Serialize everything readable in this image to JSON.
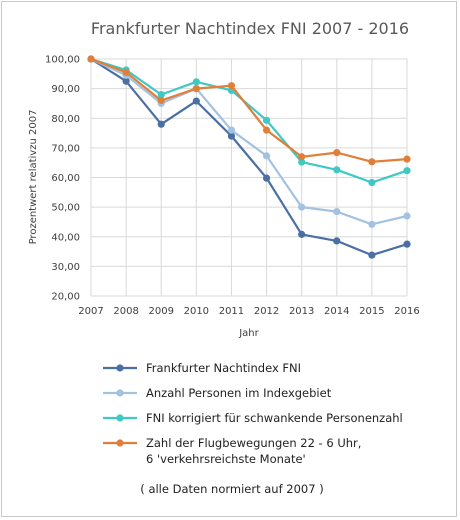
{
  "chart_data": {
    "type": "line",
    "title": "Frankfurter Nachtindex FNI 2007 - 2016",
    "xlabel": "Jahr",
    "ylabel": "Prozentwert relativzu 2007",
    "x": [
      "2007",
      "2008",
      "2009",
      "2010",
      "2011",
      "2012",
      "2013",
      "2014",
      "2015",
      "2016"
    ],
    "ylim": [
      20,
      100
    ],
    "yticks": [
      "20,00",
      "30,00",
      "40,00",
      "50,00",
      "60,00",
      "70,00",
      "80,00",
      "90,00",
      "100,00"
    ],
    "grid": true,
    "legend_position": "bottom",
    "series": [
      {
        "name": "Frankfurter Nachtindex FNI",
        "color": "#4a6fa5",
        "values": [
          100,
          92.5,
          78,
          85.8,
          74,
          59.8,
          40.8,
          38.6,
          33.8,
          37.5
        ]
      },
      {
        "name": "Anzahl Personen im Indexgebiet",
        "color": "#a3c2e0",
        "values": [
          100,
          94.5,
          85,
          90,
          76,
          67.3,
          50,
          48.5,
          44.2,
          47
        ]
      },
      {
        "name": "FNI korrigiert für schwankende Personenzahl",
        "color": "#3fc9c4",
        "values": [
          100,
          96.3,
          88,
          92.3,
          89.4,
          79.3,
          65.2,
          62.6,
          58.3,
          62.3
        ]
      },
      {
        "name": "Zahl der Flugbewegungen 22 - 6 Uhr,",
        "name_line2": "6 'verkehrsreichste Monate'",
        "color": "#e07f3a",
        "values": [
          100,
          95.5,
          86,
          90,
          91,
          76,
          67,
          68.4,
          65.3,
          66.2
        ]
      }
    ],
    "annotation": "( alle Daten normiert auf 2007 )"
  }
}
